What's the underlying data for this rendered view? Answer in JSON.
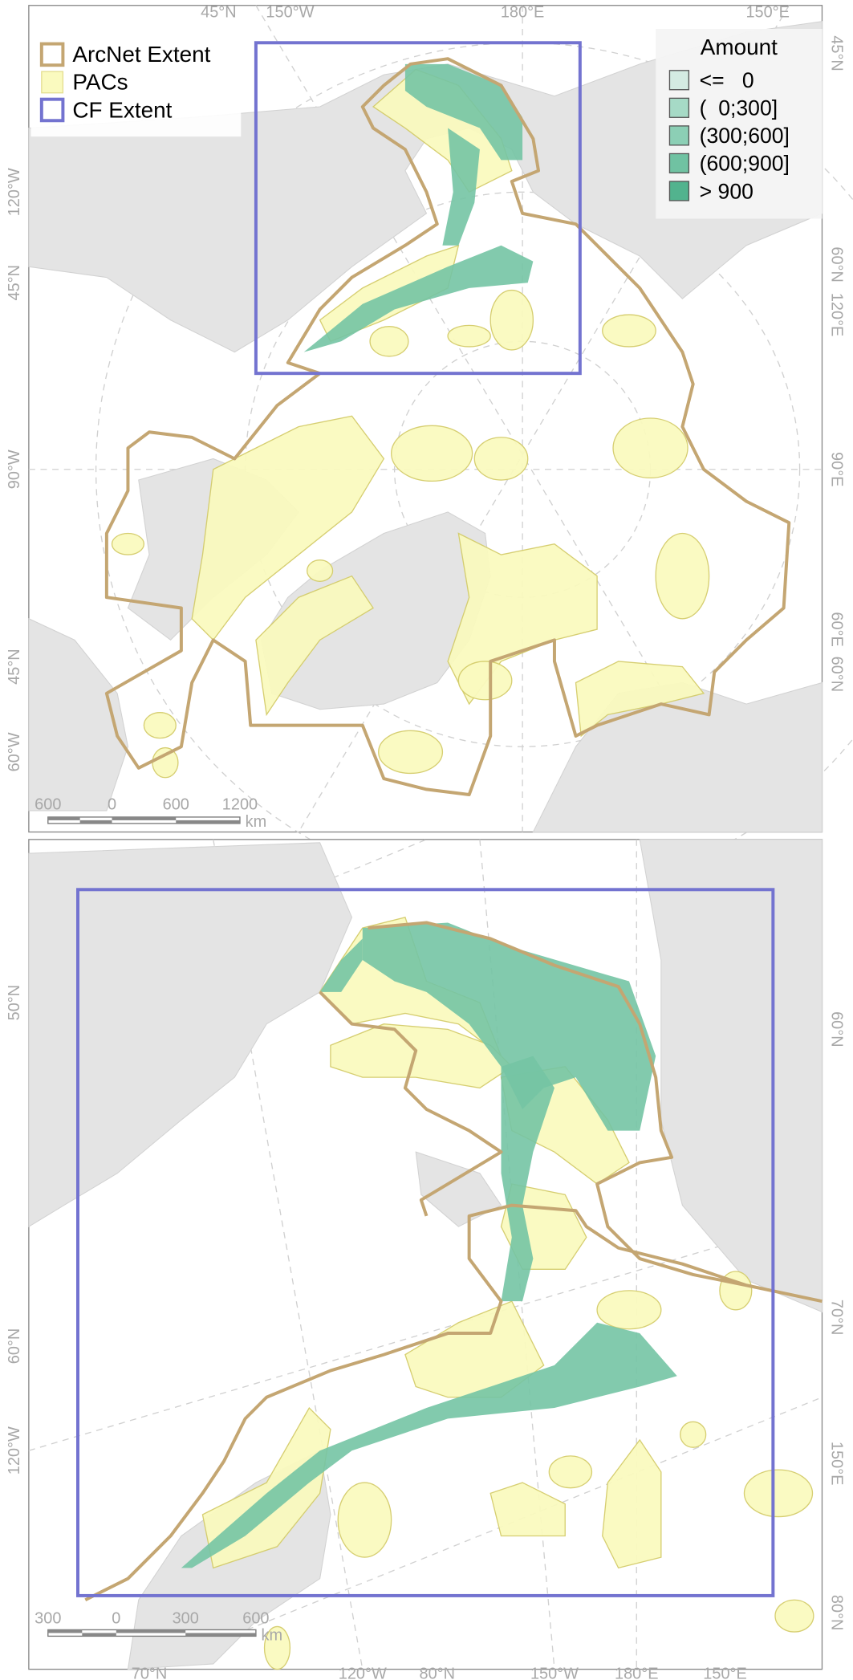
{
  "top_map": {
    "legend": {
      "items": [
        "ArcNet Extent",
        "PACs",
        "CF Extent"
      ]
    },
    "amount_legend": {
      "title": "Amount",
      "items": [
        "<=   0",
        "(  0;300]",
        "(300;600]",
        "(600;900]",
        "> 900"
      ]
    },
    "graticule_labels": {
      "top": [
        "45°N",
        "150°W",
        "180°E",
        "150°E"
      ],
      "left": [
        "120°W",
        "45°N",
        "90°W",
        "45°N",
        "60°W"
      ],
      "right": [
        "45°N",
        "60°N",
        "120°E",
        "90°E",
        "60°E",
        "60°N"
      ]
    },
    "scale_bar": {
      "labels": [
        "600",
        "0",
        "600",
        "1200"
      ],
      "unit": "km"
    }
  },
  "bottom_map": {
    "graticule_labels": {
      "left": [
        "50°N",
        "60°N",
        "120°W"
      ],
      "right": [
        "60°N",
        "70°N",
        "150°E",
        "80°N"
      ],
      "bottom": [
        "70°N",
        "120°W",
        "80°N",
        "150°W",
        "180°E",
        "150°E"
      ]
    },
    "scale_bar": {
      "labels": [
        "300",
        "0",
        "300",
        "600"
      ],
      "unit": "km"
    }
  }
}
